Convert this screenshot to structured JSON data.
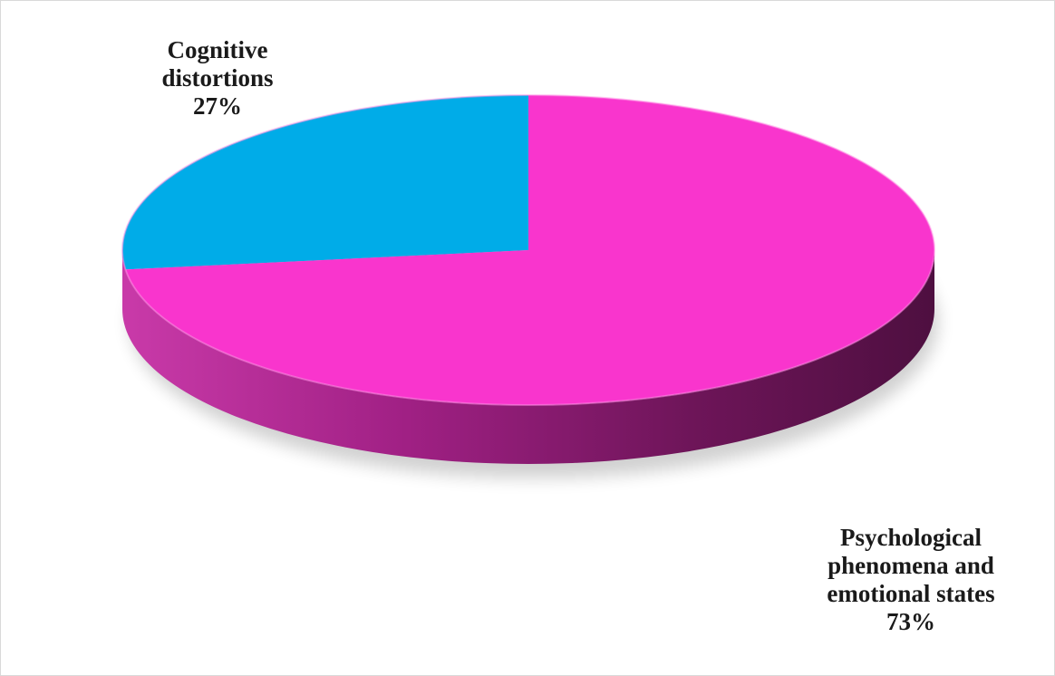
{
  "chart_data": {
    "type": "pie",
    "style": "3d",
    "slices": [
      {
        "label_lines": [
          "Cognitive",
          "distortions"
        ],
        "percent_label": "27%",
        "value": 27,
        "color": "#00ace8"
      },
      {
        "label_lines": [
          "Psychological",
          "phenomena and",
          "emotional states"
        ],
        "percent_label": "73%",
        "value": 73,
        "color": "#f935cd"
      }
    ],
    "legend": "none"
  }
}
